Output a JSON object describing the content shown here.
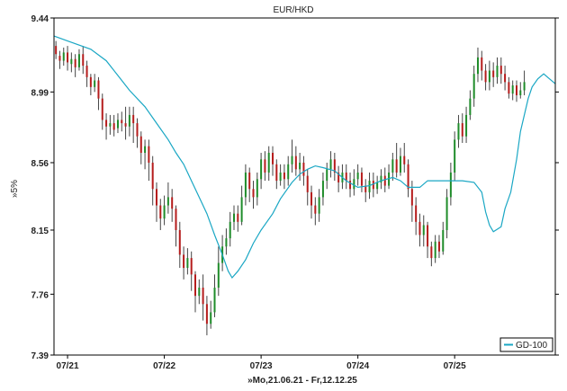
{
  "chart_data": {
    "type": "line",
    "title": "EUR/HKD",
    "ylabel": "»5%",
    "xlabel": "»Mo,21.06.21 - Fr,12.12.25",
    "ylim": [
      7.39,
      9.44
    ],
    "grid": false,
    "legend_position": "bottom-right",
    "y_ticks": [
      "9.44",
      "8.99",
      "8.56",
      "8.15",
      "7.76",
      "7.39"
    ],
    "x_ticks": [
      "07/21",
      "07/22",
      "07/23",
      "07/24",
      "07/25"
    ],
    "x_tick_positions": [
      0.0,
      0.25,
      0.5,
      0.75,
      1.0
    ],
    "x_range": [
      -0.035,
      1.26
    ],
    "series": [
      {
        "name": "GD-100",
        "color": "#1aa7c4",
        "points": [
          [
            -0.035,
            9.33
          ],
          [
            0.0,
            9.3
          ],
          [
            0.06,
            9.25
          ],
          [
            0.1,
            9.18
          ],
          [
            0.13,
            9.09
          ],
          [
            0.16,
            9.0
          ],
          [
            0.2,
            8.9
          ],
          [
            0.23,
            8.8
          ],
          [
            0.26,
            8.7
          ],
          [
            0.28,
            8.62
          ],
          [
            0.3,
            8.55
          ],
          [
            0.32,
            8.45
          ],
          [
            0.34,
            8.35
          ],
          [
            0.36,
            8.25
          ],
          [
            0.38,
            8.12
          ],
          [
            0.4,
            8.0
          ],
          [
            0.415,
            7.9
          ],
          [
            0.425,
            7.86
          ],
          [
            0.44,
            7.9
          ],
          [
            0.46,
            7.97
          ],
          [
            0.48,
            8.07
          ],
          [
            0.5,
            8.15
          ],
          [
            0.53,
            8.25
          ],
          [
            0.55,
            8.34
          ],
          [
            0.58,
            8.44
          ],
          [
            0.6,
            8.49
          ],
          [
            0.62,
            8.52
          ],
          [
            0.64,
            8.54
          ],
          [
            0.66,
            8.53
          ],
          [
            0.69,
            8.51
          ],
          [
            0.72,
            8.45
          ],
          [
            0.75,
            8.41
          ],
          [
            0.78,
            8.42
          ],
          [
            0.81,
            8.45
          ],
          [
            0.84,
            8.47
          ],
          [
            0.86,
            8.45
          ],
          [
            0.88,
            8.41
          ],
          [
            0.91,
            8.41
          ],
          [
            0.93,
            8.45
          ],
          [
            0.96,
            8.45
          ],
          [
            0.99,
            8.45
          ],
          [
            1.02,
            8.45
          ],
          [
            1.05,
            8.44
          ],
          [
            1.07,
            8.38
          ],
          [
            1.08,
            8.26
          ],
          [
            1.09,
            8.18
          ],
          [
            1.1,
            8.14
          ],
          [
            1.12,
            8.17
          ],
          [
            1.13,
            8.28
          ],
          [
            1.145,
            8.38
          ],
          [
            1.16,
            8.58
          ],
          [
            1.17,
            8.75
          ],
          [
            1.19,
            8.95
          ],
          [
            1.2,
            9.02
          ],
          [
            1.215,
            9.07
          ],
          [
            1.23,
            9.1
          ],
          [
            1.245,
            9.07
          ],
          [
            1.26,
            9.04
          ]
        ]
      }
    ],
    "ohlc_note": "Daily candles: green=up, red=down",
    "candles": [
      [
        -0.03,
        9.27,
        9.22,
        9.3,
        9.19
      ],
      [
        -0.02,
        9.21,
        9.18,
        9.24,
        9.13
      ],
      [
        -0.01,
        9.18,
        9.23,
        9.26,
        9.15
      ],
      [
        0.0,
        9.23,
        9.17,
        9.27,
        9.12
      ],
      [
        0.01,
        9.16,
        9.19,
        9.23,
        9.11
      ],
      [
        0.02,
        9.19,
        9.14,
        9.22,
        9.08
      ],
      [
        0.03,
        9.14,
        9.22,
        9.25,
        9.12
      ],
      [
        0.04,
        9.22,
        9.15,
        9.27,
        9.1
      ],
      [
        0.05,
        9.15,
        9.08,
        9.18,
        9.02
      ],
      [
        0.06,
        9.08,
        9.02,
        9.1,
        8.97
      ],
      [
        0.07,
        9.02,
        9.06,
        9.1,
        8.99
      ],
      [
        0.08,
        9.06,
        8.95,
        9.08,
        8.88
      ],
      [
        0.09,
        8.95,
        8.82,
        8.98,
        8.76
      ],
      [
        0.1,
        8.82,
        8.78,
        8.86,
        8.7
      ],
      [
        0.11,
        8.78,
        8.8,
        8.85,
        8.73
      ],
      [
        0.12,
        8.8,
        8.76,
        8.85,
        8.72
      ],
      [
        0.13,
        8.77,
        8.82,
        8.86,
        8.74
      ],
      [
        0.14,
        8.82,
        8.8,
        8.87,
        8.75
      ],
      [
        0.15,
        8.8,
        8.78,
        8.9,
        8.7
      ],
      [
        0.16,
        8.78,
        8.85,
        8.9,
        8.72
      ],
      [
        0.17,
        8.85,
        8.8,
        8.9,
        8.68
      ],
      [
        0.18,
        8.8,
        8.72,
        8.83,
        8.65
      ],
      [
        0.19,
        8.72,
        8.62,
        8.75,
        8.55
      ],
      [
        0.2,
        8.62,
        8.66,
        8.7,
        8.52
      ],
      [
        0.21,
        8.66,
        8.56,
        8.7,
        8.45
      ],
      [
        0.22,
        8.56,
        8.4,
        8.6,
        8.3
      ],
      [
        0.23,
        8.4,
        8.3,
        8.44,
        8.2
      ],
      [
        0.24,
        8.3,
        8.22,
        8.34,
        8.15
      ],
      [
        0.25,
        8.22,
        8.3,
        8.36,
        8.18
      ],
      [
        0.26,
        8.3,
        8.35,
        8.44,
        8.25
      ],
      [
        0.27,
        8.35,
        8.28,
        8.4,
        8.2
      ],
      [
        0.28,
        8.28,
        8.15,
        8.3,
        8.05
      ],
      [
        0.29,
        8.15,
        8.0,
        8.2,
        7.92
      ],
      [
        0.3,
        8.0,
        7.92,
        8.05,
        7.85
      ],
      [
        0.31,
        7.92,
        7.98,
        8.04,
        7.88
      ],
      [
        0.32,
        7.98,
        7.88,
        8.02,
        7.78
      ],
      [
        0.33,
        7.88,
        7.75,
        7.9,
        7.65
      ],
      [
        0.34,
        7.75,
        7.8,
        7.85,
        7.7
      ],
      [
        0.35,
        7.8,
        7.7,
        7.88,
        7.6
      ],
      [
        0.36,
        7.7,
        7.58,
        7.75,
        7.51
      ],
      [
        0.37,
        7.58,
        7.65,
        7.72,
        7.55
      ],
      [
        0.38,
        7.65,
        7.8,
        7.88,
        7.62
      ],
      [
        0.39,
        7.8,
        7.95,
        8.05,
        7.75
      ],
      [
        0.4,
        7.95,
        8.05,
        8.12,
        7.9
      ],
      [
        0.41,
        8.05,
        8.1,
        8.16,
        8.0
      ],
      [
        0.42,
        8.1,
        8.2,
        8.26,
        8.05
      ],
      [
        0.43,
        8.2,
        8.25,
        8.3,
        8.15
      ],
      [
        0.44,
        8.25,
        8.2,
        8.3,
        8.14
      ],
      [
        0.45,
        8.2,
        8.35,
        8.42,
        8.18
      ],
      [
        0.46,
        8.35,
        8.5,
        8.55,
        8.3
      ],
      [
        0.47,
        8.5,
        8.4,
        8.53,
        8.32
      ],
      [
        0.48,
        8.4,
        8.35,
        8.45,
        8.28
      ],
      [
        0.49,
        8.35,
        8.46,
        8.5,
        8.3
      ],
      [
        0.5,
        8.46,
        8.58,
        8.62,
        8.4
      ],
      [
        0.51,
        8.58,
        8.5,
        8.63,
        8.45
      ],
      [
        0.52,
        8.5,
        8.62,
        8.66,
        8.45
      ],
      [
        0.53,
        8.62,
        8.55,
        8.66,
        8.48
      ],
      [
        0.54,
        8.55,
        8.45,
        8.58,
        8.4
      ],
      [
        0.55,
        8.45,
        8.5,
        8.55,
        8.42
      ],
      [
        0.56,
        8.5,
        8.46,
        8.55,
        8.4
      ],
      [
        0.57,
        8.46,
        8.55,
        8.6,
        8.42
      ],
      [
        0.58,
        8.55,
        8.6,
        8.7,
        8.5
      ],
      [
        0.59,
        8.6,
        8.52,
        8.66,
        8.48
      ],
      [
        0.6,
        8.52,
        8.56,
        8.62,
        8.45
      ],
      [
        0.61,
        8.56,
        8.48,
        8.6,
        8.42
      ],
      [
        0.62,
        8.48,
        8.38,
        8.52,
        8.3
      ],
      [
        0.63,
        8.38,
        8.3,
        8.42,
        8.22
      ],
      [
        0.64,
        8.3,
        8.25,
        8.35,
        8.18
      ],
      [
        0.65,
        8.25,
        8.35,
        8.4,
        8.2
      ],
      [
        0.66,
        8.35,
        8.45,
        8.5,
        8.3
      ],
      [
        0.67,
        8.45,
        8.52,
        8.56,
        8.4
      ],
      [
        0.68,
        8.52,
        8.58,
        8.63,
        8.47
      ],
      [
        0.69,
        8.58,
        8.5,
        8.62,
        8.45
      ],
      [
        0.7,
        8.5,
        8.44,
        8.54,
        8.38
      ],
      [
        0.71,
        8.44,
        8.5,
        8.55,
        8.4
      ],
      [
        0.72,
        8.5,
        8.45,
        8.55,
        8.4
      ],
      [
        0.73,
        8.45,
        8.4,
        8.5,
        8.35
      ],
      [
        0.74,
        8.4,
        8.46,
        8.52,
        8.36
      ],
      [
        0.75,
        8.46,
        8.5,
        8.55,
        8.42
      ],
      [
        0.76,
        8.5,
        8.42,
        8.53,
        8.38
      ],
      [
        0.77,
        8.42,
        8.38,
        8.46,
        8.32
      ],
      [
        0.78,
        8.38,
        8.45,
        8.5,
        8.34
      ],
      [
        0.79,
        8.45,
        8.4,
        8.5,
        8.35
      ],
      [
        0.8,
        8.4,
        8.44,
        8.48,
        8.37
      ],
      [
        0.81,
        8.44,
        8.48,
        8.52,
        8.4
      ],
      [
        0.82,
        8.48,
        8.42,
        8.53,
        8.38
      ],
      [
        0.83,
        8.42,
        8.5,
        8.55,
        8.4
      ],
      [
        0.84,
        8.5,
        8.58,
        8.62,
        8.45
      ],
      [
        0.85,
        8.58,
        8.5,
        8.68,
        8.47
      ],
      [
        0.86,
        8.5,
        8.6,
        8.65,
        8.48
      ],
      [
        0.87,
        8.6,
        8.55,
        8.68,
        8.5
      ],
      [
        0.88,
        8.55,
        8.4,
        8.58,
        8.35
      ],
      [
        0.89,
        8.4,
        8.3,
        8.45,
        8.2
      ],
      [
        0.9,
        8.3,
        8.2,
        8.35,
        8.12
      ],
      [
        0.91,
        8.2,
        8.12,
        8.25,
        8.05
      ],
      [
        0.92,
        8.12,
        8.18,
        8.24,
        8.05
      ],
      [
        0.93,
        8.18,
        8.05,
        8.2,
        7.98
      ],
      [
        0.94,
        8.05,
        7.98,
        8.08,
        7.93
      ],
      [
        0.95,
        7.98,
        8.08,
        8.12,
        7.95
      ],
      [
        0.96,
        8.08,
        8.02,
        8.12,
        7.98
      ],
      [
        0.97,
        8.02,
        8.15,
        8.2,
        8.0
      ],
      [
        0.98,
        8.15,
        8.35,
        8.4,
        8.1
      ],
      [
        0.99,
        8.35,
        8.5,
        8.56,
        8.3
      ],
      [
        1.0,
        8.5,
        8.7,
        8.75,
        8.45
      ],
      [
        1.01,
        8.7,
        8.8,
        8.85,
        8.65
      ],
      [
        1.02,
        8.8,
        8.72,
        8.86,
        8.68
      ],
      [
        1.03,
        8.72,
        8.85,
        8.9,
        8.68
      ],
      [
        1.04,
        8.85,
        8.95,
        9.0,
        8.82
      ],
      [
        1.05,
        8.95,
        9.1,
        9.15,
        8.9
      ],
      [
        1.06,
        9.1,
        9.2,
        9.26,
        9.05
      ],
      [
        1.07,
        9.2,
        9.12,
        9.24,
        9.06
      ],
      [
        1.08,
        9.12,
        9.05,
        9.16,
        9.0
      ],
      [
        1.09,
        9.05,
        9.12,
        9.18,
        9.0
      ],
      [
        1.1,
        9.12,
        9.08,
        9.17,
        9.02
      ],
      [
        1.11,
        9.08,
        9.15,
        9.2,
        9.04
      ],
      [
        1.12,
        9.15,
        9.1,
        9.2,
        9.04
      ],
      [
        1.13,
        9.1,
        9.05,
        9.15,
        9.0
      ],
      [
        1.14,
        9.05,
        8.98,
        9.08,
        8.95
      ],
      [
        1.15,
        8.98,
        9.03,
        9.06,
        8.94
      ],
      [
        1.16,
        9.03,
        8.97,
        9.06,
        8.93
      ],
      [
        1.17,
        8.97,
        9.0,
        9.05,
        8.95
      ],
      [
        1.18,
        9.0,
        9.05,
        9.12,
        8.97
      ]
    ]
  }
}
